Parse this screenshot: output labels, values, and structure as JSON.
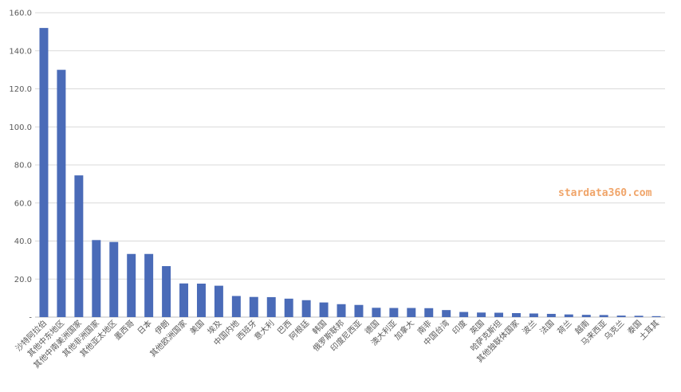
{
  "watermark": "stardata360.com",
  "chart_data": {
    "type": "bar",
    "title": "",
    "xlabel": "",
    "ylabel": "",
    "ylim": [
      0,
      160
    ],
    "yticks": [
      "-",
      "20.0",
      "40.0",
      "60.0",
      "80.0",
      "100.0",
      "120.0",
      "140.0",
      "160.0"
    ],
    "grid": true,
    "bar_color": "#4a6bb8",
    "categories": [
      "沙特阿拉伯",
      "其他中东地区",
      "其他中南美洲国家",
      "其他非洲国家",
      "其他亚太地区",
      "墨西哥",
      "日本",
      "伊朗",
      "其他欧洲国家",
      "美国",
      "埃及",
      "中国内地",
      "西班牙",
      "意大利",
      "巴西",
      "阿根廷",
      "韩国",
      "俄罗斯联邦",
      "印度尼西亚",
      "德国",
      "澳大利亚",
      "加拿大",
      "南非",
      "中国台湾",
      "印度",
      "英国",
      "哈萨克斯坦",
      "其他独联体国家",
      "波兰",
      "法国",
      "荷兰",
      "越南",
      "马来西亚",
      "乌克兰",
      "泰国",
      "土耳其"
    ],
    "values": [
      152,
      130,
      74.5,
      40.5,
      39.5,
      33.2,
      33.2,
      26.8,
      17.7,
      17.6,
      16.5,
      11.1,
      10.6,
      10.5,
      9.7,
      8.9,
      7.7,
      6.8,
      6.4,
      4.9,
      4.8,
      4.8,
      4.7,
      3.7,
      2.7,
      2.4,
      2.3,
      2.1,
      1.9,
      1.7,
      1.4,
      1.2,
      1.1,
      0.8,
      0.7,
      0.5
    ]
  }
}
